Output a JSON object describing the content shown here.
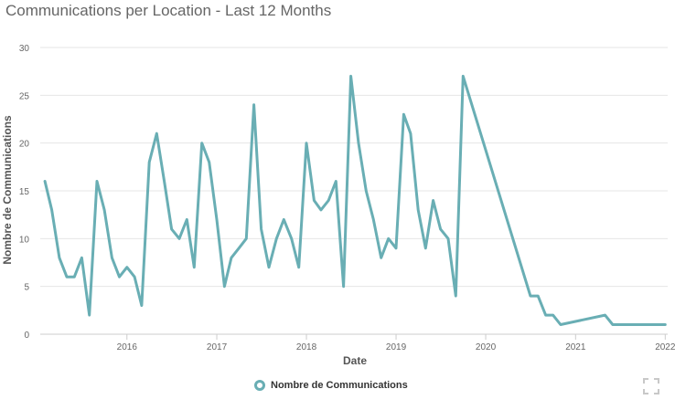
{
  "header": {
    "title": "Communications per Location - Last 12 Months"
  },
  "legend": {
    "label": "Nombre de Communications",
    "icon": "circle-outline-icon"
  },
  "toolbar": {
    "expand_icon": "fullscreen-icon"
  },
  "colors": {
    "series": "#69aeb4",
    "grid": "#e6e6e6",
    "axis_text": "#666666"
  },
  "chart_data": {
    "type": "line",
    "title": "Communications per Location - Last 12 Months",
    "xlabel": "Date",
    "ylabel": "Nombre de Communications",
    "ylim": [
      0,
      30
    ],
    "yticks": [
      0,
      5,
      10,
      15,
      20,
      25,
      30
    ],
    "xlim": [
      "2015-01-13",
      "2022-01-11"
    ],
    "xticks": [
      {
        "date": "2016-01-01",
        "label": "2016"
      },
      {
        "date": "2017-01-01",
        "label": "2017"
      },
      {
        "date": "2018-01-01",
        "label": "2018"
      },
      {
        "date": "2019-01-01",
        "label": "2019"
      },
      {
        "date": "2020-01-01",
        "label": "2020"
      },
      {
        "date": "2021-01-01",
        "label": "2021"
      },
      {
        "date": "2022-01-01",
        "label": "2022"
      }
    ],
    "grid": true,
    "legend_position": "bottom-center",
    "series": [
      {
        "name": "Nombre de Communications",
        "points": [
          [
            "2015-02-01",
            16
          ],
          [
            "2015-03-01",
            13
          ],
          [
            "2015-04-01",
            8
          ],
          [
            "2015-05-01",
            6
          ],
          [
            "2015-06-01",
            6
          ],
          [
            "2015-07-01",
            8
          ],
          [
            "2015-08-01",
            2
          ],
          [
            "2015-09-01",
            16
          ],
          [
            "2015-10-01",
            13
          ],
          [
            "2015-11-01",
            8
          ],
          [
            "2015-12-01",
            6
          ],
          [
            "2016-01-01",
            7
          ],
          [
            "2016-02-01",
            6
          ],
          [
            "2016-03-01",
            3
          ],
          [
            "2016-04-01",
            18
          ],
          [
            "2016-05-01",
            21
          ],
          [
            "2016-06-01",
            16
          ],
          [
            "2016-07-01",
            11
          ],
          [
            "2016-08-01",
            10
          ],
          [
            "2016-09-01",
            12
          ],
          [
            "2016-10-01",
            7
          ],
          [
            "2016-11-01",
            20
          ],
          [
            "2016-12-01",
            18
          ],
          [
            "2017-01-01",
            12
          ],
          [
            "2017-02-01",
            5
          ],
          [
            "2017-03-01",
            8
          ],
          [
            "2017-04-01",
            9
          ],
          [
            "2017-05-01",
            10
          ],
          [
            "2017-06-01",
            24
          ],
          [
            "2017-07-01",
            11
          ],
          [
            "2017-08-01",
            7
          ],
          [
            "2017-09-01",
            10
          ],
          [
            "2017-10-01",
            12
          ],
          [
            "2017-11-01",
            10
          ],
          [
            "2017-12-01",
            7
          ],
          [
            "2018-01-01",
            20
          ],
          [
            "2018-02-01",
            14
          ],
          [
            "2018-03-01",
            13
          ],
          [
            "2018-04-01",
            14
          ],
          [
            "2018-05-01",
            16
          ],
          [
            "2018-06-01",
            5
          ],
          [
            "2018-07-01",
            27
          ],
          [
            "2018-08-01",
            20
          ],
          [
            "2018-09-01",
            15
          ],
          [
            "2018-10-01",
            12
          ],
          [
            "2018-11-01",
            8
          ],
          [
            "2018-12-01",
            10
          ],
          [
            "2019-01-01",
            9
          ],
          [
            "2019-02-01",
            23
          ],
          [
            "2019-03-01",
            21
          ],
          [
            "2019-04-01",
            13
          ],
          [
            "2019-05-01",
            9
          ],
          [
            "2019-06-01",
            14
          ],
          [
            "2019-07-01",
            11
          ],
          [
            "2019-08-01",
            10
          ],
          [
            "2019-09-01",
            4
          ],
          [
            "2019-10-01",
            27
          ],
          [
            "2020-07-01",
            4
          ],
          [
            "2020-08-01",
            4
          ],
          [
            "2020-09-01",
            2
          ],
          [
            "2020-10-01",
            2
          ],
          [
            "2020-11-01",
            1
          ],
          [
            "2021-05-01",
            2
          ],
          [
            "2021-06-01",
            1
          ],
          [
            "2022-01-01",
            1
          ]
        ]
      }
    ]
  }
}
